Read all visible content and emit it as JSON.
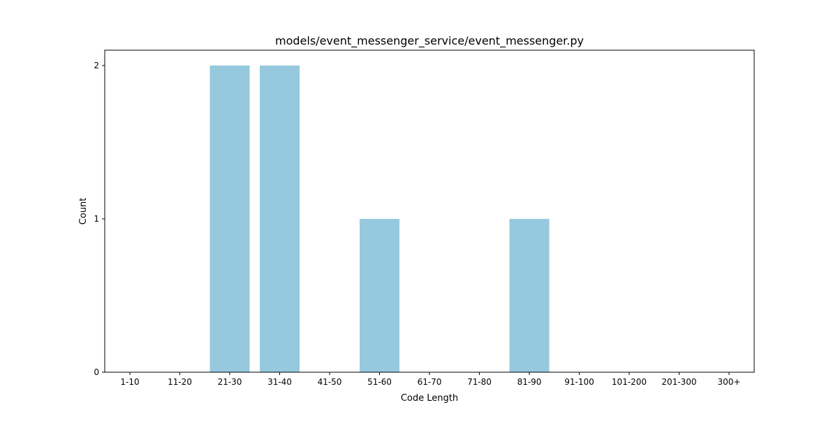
{
  "chart_data": {
    "type": "bar",
    "title": "models/event_messenger_service/event_messenger.py",
    "xlabel": "Code Length",
    "ylabel": "Count",
    "categories": [
      "1-10",
      "11-20",
      "21-30",
      "31-40",
      "41-50",
      "51-60",
      "61-70",
      "71-80",
      "81-90",
      "91-100",
      "101-200",
      "201-300",
      "300+"
    ],
    "values": [
      0,
      0,
      2,
      2,
      0,
      1,
      0,
      0,
      1,
      0,
      0,
      0,
      0
    ],
    "ylim": [
      0,
      2.1
    ],
    "yticks": [
      0,
      1,
      2
    ],
    "grid": false,
    "bar_color": "#96c9de"
  }
}
